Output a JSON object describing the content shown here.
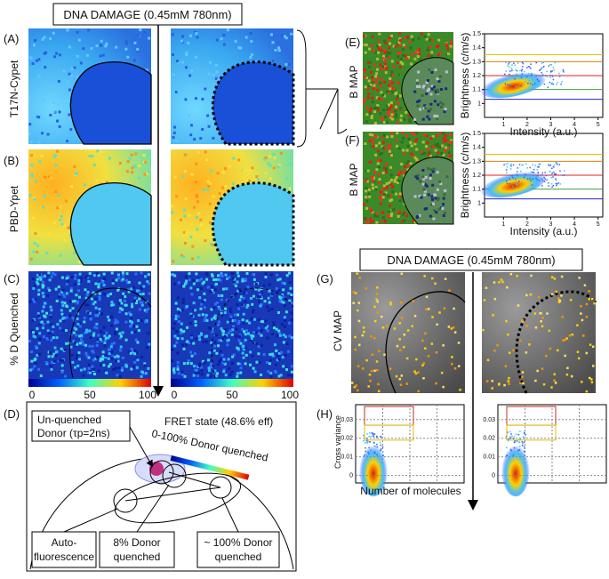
{
  "header": "DNA DAMAGE (0.45mM 780nm)",
  "panel_a": {
    "label": "(A)",
    "ylabel": "T17N-Cypet"
  },
  "panel_b": {
    "label": "(B)",
    "ylabel": "PBD-Ypet"
  },
  "panel_c": {
    "label": "(C)",
    "ylabel": "% D Quenched",
    "colorbar_ticks": [
      0,
      50,
      100
    ]
  },
  "panel_d": {
    "label": "(D)",
    "unquenched": [
      "Un-quenched",
      "Donor (τp=2ns)"
    ],
    "fret_state": "FRET state (48.6% eff)",
    "range": "0-100% Donor quenched",
    "auto": [
      "Auto-",
      "fluorescence"
    ],
    "eight": [
      "8% Donor",
      "quenched"
    ],
    "hundred": [
      "~ 100% Donor",
      "quenched"
    ]
  },
  "panel_e": {
    "label": "(E)",
    "ylabel": "B MAP"
  },
  "panel_f": {
    "label": "(F)",
    "ylabel": "B MAP"
  },
  "brightness_plot": {
    "ylabel": "Brightness (c/m/s)",
    "xlabel": "Intensity (a.u.)",
    "yticks": [
      1,
      1.1,
      1.2,
      1.3,
      1.4,
      1.5
    ],
    "xticks": [
      1,
      2,
      3,
      4,
      5
    ]
  },
  "panel_g": {
    "label": "(G)",
    "header": "DNA DAMAGE (0.45mM 780nm)",
    "ylabel": "CV MAP"
  },
  "panel_h": {
    "label": "(H)",
    "ylabel": "Cross variance",
    "xlabel": "Number of molecules",
    "yticks": [
      0,
      0.01,
      0.02,
      0.03
    ]
  }
}
